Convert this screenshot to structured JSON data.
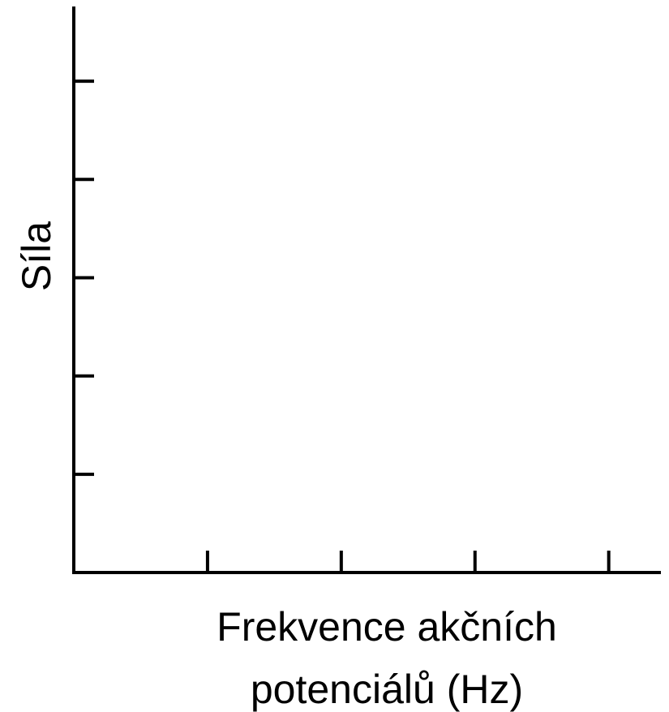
{
  "chart_data": {
    "type": "line",
    "title": "",
    "xlabel_lines": [
      "Frekvence akčních",
      "potenciálů (Hz)"
    ],
    "ylabel": "Síla",
    "x_ticks": [
      1,
      2,
      3,
      4
    ],
    "y_ticks": [
      1,
      2,
      3,
      4,
      5
    ],
    "xlim": [
      0,
      4.39
    ],
    "ylim": [
      0,
      5.76
    ],
    "series": [],
    "grid": false,
    "legend": "none",
    "tick_labels_visible": false,
    "colors": {
      "axis": "#000000",
      "background": "#ffffff"
    }
  }
}
